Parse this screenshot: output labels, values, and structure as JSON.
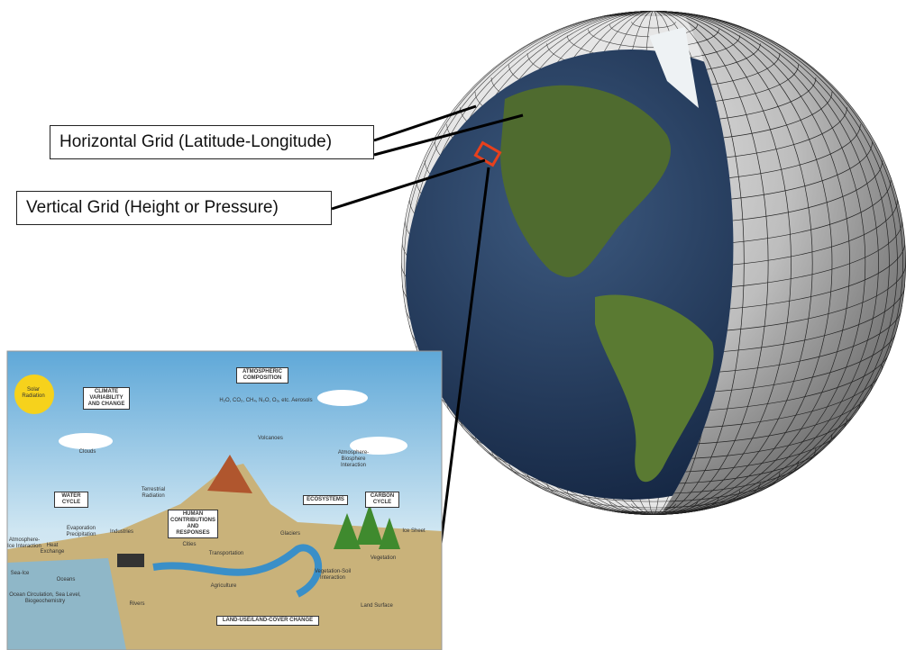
{
  "labels": {
    "horizontal_grid": "Horizontal Grid (Latitude-Longitude)",
    "vertical_grid": "Vertical Grid (Height or Pressure)"
  },
  "inset": {
    "labels": [
      "Solar Radiation",
      "CLIMATE VARIABILITY AND CHANGE",
      "ATMOSPHERIC COMPOSITION",
      "H₂O, CO₂, CH₄, N₂O, O₃, etc. Aerosols",
      "Volcanoes",
      "Clouds",
      "WATER CYCLE",
      "Terrestrial Radiation",
      "HUMAN CONTRIBUTIONS AND RESPONSES",
      "ECOSYSTEMS",
      "CARBON CYCLE",
      "Atmosphere-Biosphere Interaction",
      "Evaporation Precipitation",
      "Industries",
      "Cities",
      "Glaciers",
      "Ice Sheet",
      "Atmosphere-Ice Interaction",
      "Heat Exchange",
      "Transportation",
      "Vegetation",
      "Sea-Ice",
      "Oceans",
      "Agriculture",
      "Vegetation-Soil Interaction",
      "Ocean Circulation, Sea Level, Biogeochemistry",
      "Rivers",
      "Land Surface",
      "LAND-USE/LAND-COVER CHANGE"
    ]
  }
}
